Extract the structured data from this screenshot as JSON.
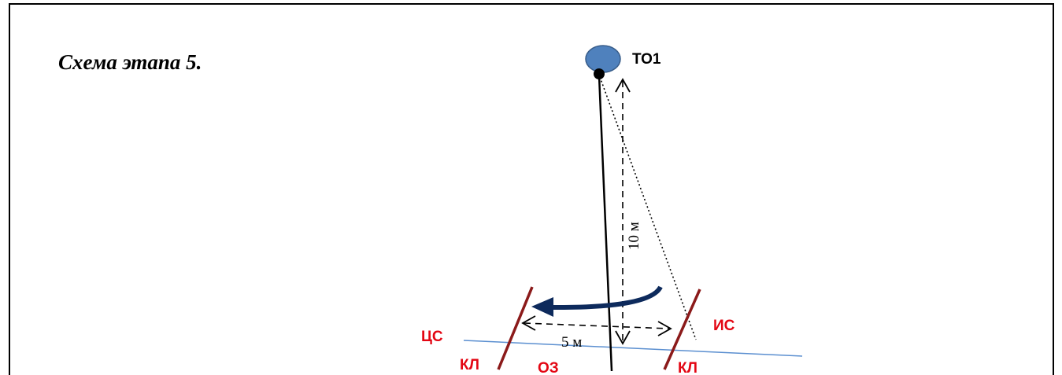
{
  "title": "Схема этапа 5.",
  "labels": {
    "target": "ТО1",
    "distance_vertical": "10 м",
    "distance_horizontal": "5 м",
    "center_station": "ЦС",
    "initial_station": "ИС",
    "boundary_left": "КЛ",
    "boundary_right": "КЛ",
    "zone": "ОЗ"
  },
  "colors": {
    "target_fill": "#4f81bd",
    "target_stroke": "#385d8a",
    "boundary_line": "#8b1a1a",
    "arrow": "#0d2a5c",
    "ground_line": "#5b8fd0",
    "label_red": "#e30613"
  }
}
